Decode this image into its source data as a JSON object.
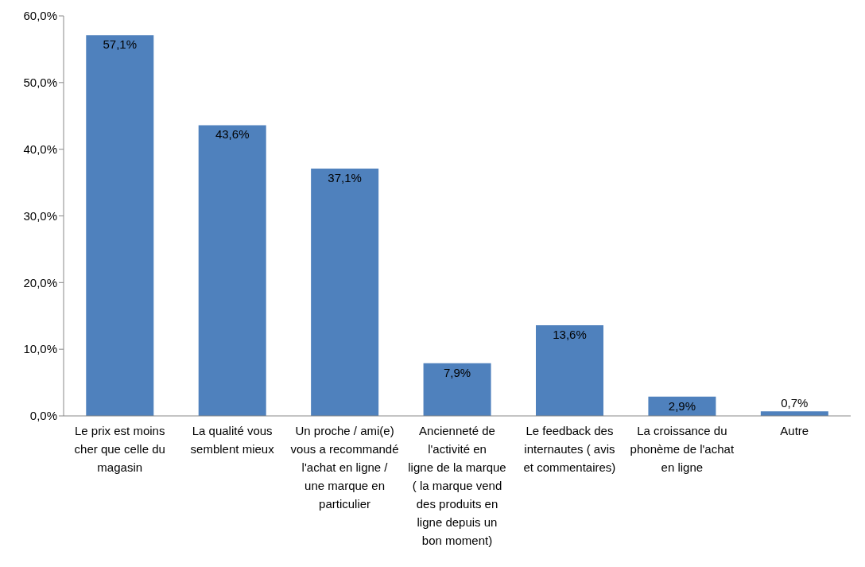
{
  "chart_data": {
    "type": "bar",
    "categories": [
      "Le prix est moins cher que celle du magasin",
      "La qualité vous semblent mieux",
      "Un proche / ami(e) vous a recommandé l'achat en ligne / une marque en particulier",
      "Ancienneté de l'activité en ligne de la marque ( la marque vend des produits en ligne depuis un bon moment)",
      "Le feedback des internautes ( avis et commentaires)",
      "La croissance du phonème de l'achat en ligne",
      "Autre"
    ],
    "values": [
      57.1,
      43.6,
      37.1,
      7.9,
      13.6,
      2.9,
      0.7
    ],
    "value_labels": [
      "57,1%",
      "43,6%",
      "37,1%",
      "7,9%",
      "13,6%",
      "2,9%",
      "0,7%"
    ],
    "color": "#4f81bd",
    "ylim": [
      0,
      60
    ],
    "yticks": [
      {
        "value": 0,
        "label": "0,0%"
      },
      {
        "value": 10,
        "label": "10,0%"
      },
      {
        "value": 20,
        "label": "20,0%"
      },
      {
        "value": 30,
        "label": "30,0%"
      },
      {
        "value": 40,
        "label": "40,0%"
      },
      {
        "value": 50,
        "label": "50,0%"
      },
      {
        "value": 60,
        "label": "60,0%"
      }
    ],
    "grid": false,
    "legend": false
  }
}
